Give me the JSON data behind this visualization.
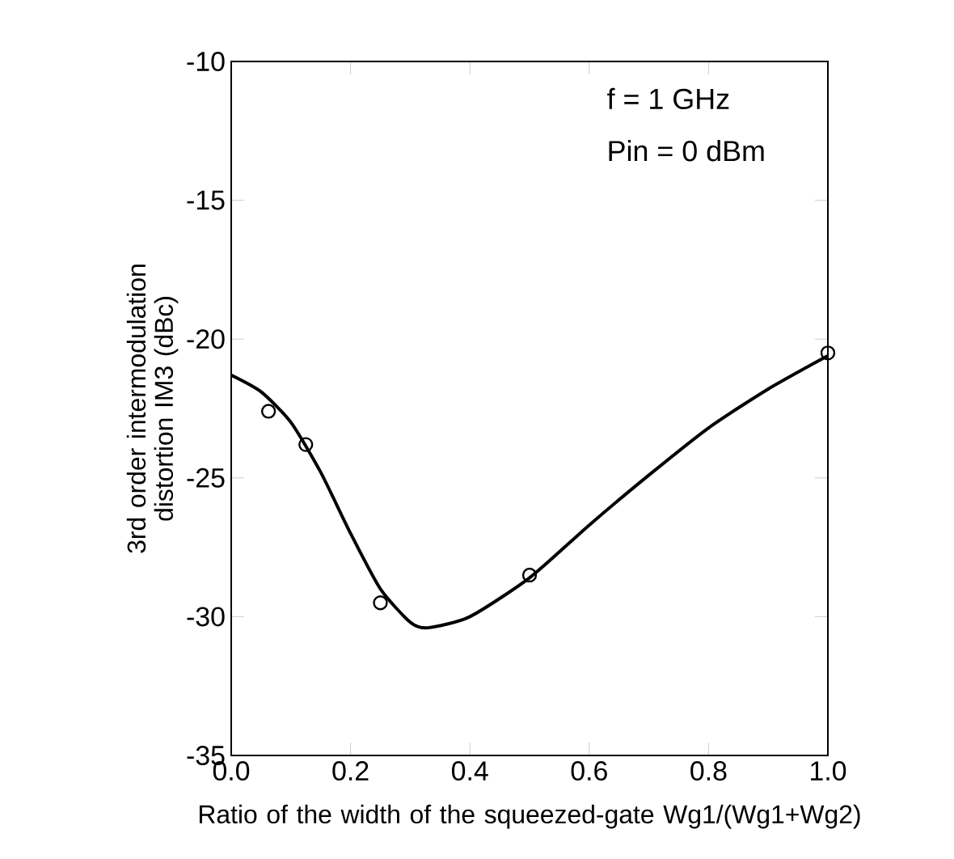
{
  "chart_data": {
    "type": "line",
    "xlabel": "Ratio of the width of the squeezed-gate Wg1/(Wg1+Wg2)",
    "ylabel": "3rd order intermodulation distortion IM3 (dBc)",
    "annotations": [
      "f = 1 GHz",
      "Pin = 0 dBm"
    ],
    "xlim": [
      0,
      1
    ],
    "ylim": [
      -35,
      -10
    ],
    "xticks": [
      {
        "value": 0,
        "label": "0.0"
      },
      0.2,
      0.4,
      0.6,
      0.8,
      {
        "value": 1,
        "label": "1.0"
      }
    ],
    "yticks": [
      -35,
      -30,
      -25,
      -20,
      -15,
      -10
    ],
    "series": [
      {
        "color": "#000000",
        "marker": "none",
        "x": [
          0,
          0.05,
          0.1,
          0.15,
          0.2,
          0.25,
          0.3,
          0.33,
          0.4,
          0.5,
          0.6,
          0.7,
          0.8,
          0.9,
          1.0
        ],
        "values": [
          -21.3,
          -21.9,
          -23.0,
          -24.8,
          -27.0,
          -29.0,
          -30.2,
          -30.4,
          -30.0,
          -28.6,
          -26.7,
          -24.9,
          -23.2,
          -21.8,
          -20.6
        ]
      },
      {
        "type": "scatter",
        "color": "#000000",
        "marker": "circle",
        "x": [
          0.0625,
          0.125,
          0.25,
          0.5,
          1.0
        ],
        "values": [
          -22.6,
          -23.8,
          -29.5,
          -28.5,
          -20.5
        ]
      }
    ]
  }
}
